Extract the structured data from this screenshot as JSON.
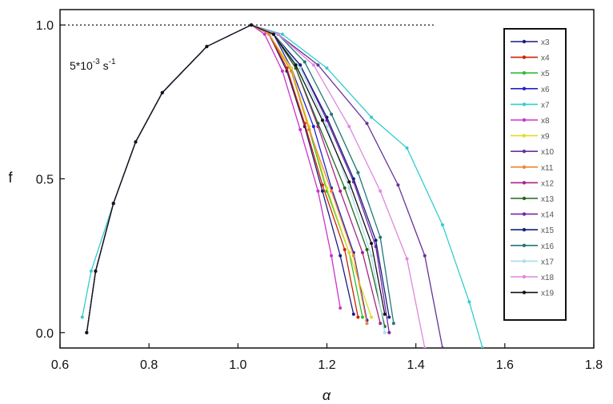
{
  "chart_data": {
    "type": "line",
    "title": "",
    "xlabel": "α",
    "ylabel": "f",
    "xlim": [
      0.6,
      1.8
    ],
    "ylim": [
      -0.05,
      1.05
    ],
    "xticks": [
      "0.6",
      "0.8",
      "1.0",
      "1.2",
      "1.4",
      "1.6",
      "1.8"
    ],
    "yticks": [
      "0.0",
      "0.5",
      "1.0"
    ],
    "reference_line": {
      "y": 1.0,
      "x_range": [
        0.6,
        1.44
      ],
      "style": "dotted"
    },
    "annotation": {
      "base": "5*10",
      "exp1": "-3",
      "unit": " s",
      "exp2": "-1"
    },
    "grid": false,
    "legend_position": "right",
    "series": [
      {
        "name": "x3",
        "color": "#1a1a80",
        "points": [
          [
            0.66,
            0.0
          ],
          [
            0.68,
            0.2
          ],
          [
            0.72,
            0.42
          ],
          [
            0.77,
            0.62
          ],
          [
            0.83,
            0.78
          ],
          [
            0.93,
            0.93
          ],
          [
            1.03,
            1.0
          ],
          [
            1.07,
            0.97
          ],
          [
            1.11,
            0.85
          ],
          [
            1.15,
            0.67
          ],
          [
            1.19,
            0.46
          ],
          [
            1.23,
            0.25
          ],
          [
            1.26,
            0.06
          ]
        ]
      },
      {
        "name": "x4",
        "color": "#cc2200",
        "points": [
          [
            0.66,
            0.0
          ],
          [
            0.68,
            0.2
          ],
          [
            0.72,
            0.42
          ],
          [
            0.77,
            0.62
          ],
          [
            0.83,
            0.78
          ],
          [
            0.93,
            0.93
          ],
          [
            1.03,
            1.0
          ],
          [
            1.07,
            0.97
          ],
          [
            1.11,
            0.86
          ],
          [
            1.15,
            0.68
          ],
          [
            1.19,
            0.48
          ],
          [
            1.24,
            0.27
          ],
          [
            1.27,
            0.05
          ]
        ]
      },
      {
        "name": "x5",
        "color": "#33bb33",
        "points": [
          [
            0.66,
            0.0
          ],
          [
            0.68,
            0.2
          ],
          [
            0.72,
            0.42
          ],
          [
            0.77,
            0.62
          ],
          [
            0.83,
            0.78
          ],
          [
            0.93,
            0.93
          ],
          [
            1.03,
            1.0
          ],
          [
            1.07,
            0.97
          ],
          [
            1.12,
            0.85
          ],
          [
            1.16,
            0.66
          ],
          [
            1.2,
            0.46
          ],
          [
            1.25,
            0.26
          ],
          [
            1.28,
            0.05
          ]
        ]
      },
      {
        "name": "x6",
        "color": "#2222cc",
        "points": [
          [
            0.66,
            0.0
          ],
          [
            0.68,
            0.2
          ],
          [
            0.72,
            0.42
          ],
          [
            0.77,
            0.62
          ],
          [
            0.83,
            0.78
          ],
          [
            0.93,
            0.93
          ],
          [
            1.03,
            1.0
          ],
          [
            1.08,
            0.97
          ],
          [
            1.12,
            0.86
          ],
          [
            1.17,
            0.67
          ],
          [
            1.21,
            0.47
          ],
          [
            1.26,
            0.26
          ],
          [
            1.29,
            0.04
          ]
        ]
      },
      {
        "name": "x7",
        "color": "#33cccc",
        "points": [
          [
            0.65,
            0.05
          ],
          [
            0.67,
            0.2
          ],
          [
            0.72,
            0.42
          ],
          [
            0.77,
            0.62
          ],
          [
            0.83,
            0.78
          ],
          [
            0.93,
            0.93
          ],
          [
            1.03,
            1.0
          ],
          [
            1.1,
            0.97
          ],
          [
            1.2,
            0.86
          ],
          [
            1.3,
            0.7
          ],
          [
            1.38,
            0.6
          ],
          [
            1.46,
            0.35
          ],
          [
            1.52,
            0.1
          ],
          [
            1.55,
            -0.05
          ]
        ]
      },
      {
        "name": "x8",
        "color": "#cc33cc",
        "points": [
          [
            0.66,
            0.0
          ],
          [
            0.68,
            0.2
          ],
          [
            0.72,
            0.42
          ],
          [
            0.77,
            0.62
          ],
          [
            0.83,
            0.78
          ],
          [
            0.93,
            0.93
          ],
          [
            1.03,
            1.0
          ],
          [
            1.06,
            0.97
          ],
          [
            1.1,
            0.85
          ],
          [
            1.14,
            0.66
          ],
          [
            1.18,
            0.46
          ],
          [
            1.21,
            0.25
          ],
          [
            1.23,
            0.08
          ]
        ]
      },
      {
        "name": "x9",
        "color": "#dddd22",
        "points": [
          [
            0.66,
            0.0
          ],
          [
            0.68,
            0.2
          ],
          [
            0.72,
            0.42
          ],
          [
            0.77,
            0.62
          ],
          [
            0.83,
            0.78
          ],
          [
            0.93,
            0.93
          ],
          [
            1.03,
            1.0
          ],
          [
            1.07,
            0.97
          ],
          [
            1.12,
            0.86
          ],
          [
            1.16,
            0.67
          ],
          [
            1.2,
            0.47
          ],
          [
            1.25,
            0.26
          ],
          [
            1.3,
            0.05
          ]
        ]
      },
      {
        "name": "x10",
        "color": "#663399",
        "points": [
          [
            0.66,
            0.0
          ],
          [
            0.68,
            0.2
          ],
          [
            0.72,
            0.42
          ],
          [
            0.77,
            0.62
          ],
          [
            0.83,
            0.78
          ],
          [
            0.93,
            0.93
          ],
          [
            1.03,
            1.0
          ],
          [
            1.09,
            0.97
          ],
          [
            1.18,
            0.87
          ],
          [
            1.29,
            0.68
          ],
          [
            1.36,
            0.48
          ],
          [
            1.42,
            0.25
          ],
          [
            1.46,
            -0.05
          ]
        ]
      },
      {
        "name": "x11",
        "color": "#ee8833",
        "points": [
          [
            0.66,
            0.0
          ],
          [
            0.68,
            0.2
          ],
          [
            0.72,
            0.42
          ],
          [
            0.77,
            0.62
          ],
          [
            0.83,
            0.78
          ],
          [
            0.93,
            0.93
          ],
          [
            1.03,
            1.0
          ],
          [
            1.07,
            0.97
          ],
          [
            1.12,
            0.85
          ],
          [
            1.16,
            0.66
          ],
          [
            1.21,
            0.46
          ],
          [
            1.26,
            0.25
          ],
          [
            1.29,
            0.03
          ]
        ]
      },
      {
        "name": "x12",
        "color": "#aa2288",
        "points": [
          [
            0.66,
            0.0
          ],
          [
            0.68,
            0.2
          ],
          [
            0.72,
            0.42
          ],
          [
            0.77,
            0.62
          ],
          [
            0.83,
            0.78
          ],
          [
            0.93,
            0.93
          ],
          [
            1.03,
            1.0
          ],
          [
            1.08,
            0.97
          ],
          [
            1.13,
            0.86
          ],
          [
            1.18,
            0.67
          ],
          [
            1.23,
            0.46
          ],
          [
            1.28,
            0.26
          ],
          [
            1.32,
            0.03
          ]
        ]
      },
      {
        "name": "x13",
        "color": "#226622",
        "points": [
          [
            0.66,
            0.0
          ],
          [
            0.68,
            0.2
          ],
          [
            0.72,
            0.42
          ],
          [
            0.77,
            0.62
          ],
          [
            0.83,
            0.78
          ],
          [
            0.93,
            0.93
          ],
          [
            1.03,
            1.0
          ],
          [
            1.08,
            0.97
          ],
          [
            1.13,
            0.86
          ],
          [
            1.18,
            0.68
          ],
          [
            1.24,
            0.47
          ],
          [
            1.29,
            0.27
          ],
          [
            1.33,
            0.02
          ]
        ]
      },
      {
        "name": "x14",
        "color": "#7722aa",
        "points": [
          [
            0.66,
            0.0
          ],
          [
            0.68,
            0.2
          ],
          [
            0.72,
            0.42
          ],
          [
            0.77,
            0.62
          ],
          [
            0.83,
            0.78
          ],
          [
            0.93,
            0.93
          ],
          [
            1.03,
            1.0
          ],
          [
            1.08,
            0.97
          ],
          [
            1.14,
            0.87
          ],
          [
            1.2,
            0.69
          ],
          [
            1.26,
            0.49
          ],
          [
            1.31,
            0.28
          ],
          [
            1.34,
            0.0
          ]
        ]
      },
      {
        "name": "x15",
        "color": "#112277",
        "points": [
          [
            0.66,
            0.0
          ],
          [
            0.68,
            0.2
          ],
          [
            0.72,
            0.42
          ],
          [
            0.77,
            0.62
          ],
          [
            0.83,
            0.78
          ],
          [
            0.93,
            0.93
          ],
          [
            1.03,
            1.0
          ],
          [
            1.08,
            0.97
          ],
          [
            1.14,
            0.87
          ],
          [
            1.2,
            0.7
          ],
          [
            1.26,
            0.5
          ],
          [
            1.31,
            0.3
          ],
          [
            1.34,
            0.05
          ]
        ]
      },
      {
        "name": "x16",
        "color": "#227777",
        "points": [
          [
            0.66,
            0.0
          ],
          [
            0.68,
            0.2
          ],
          [
            0.72,
            0.42
          ],
          [
            0.77,
            0.62
          ],
          [
            0.83,
            0.78
          ],
          [
            0.93,
            0.93
          ],
          [
            1.03,
            1.0
          ],
          [
            1.09,
            0.97
          ],
          [
            1.15,
            0.88
          ],
          [
            1.21,
            0.71
          ],
          [
            1.27,
            0.52
          ],
          [
            1.32,
            0.31
          ],
          [
            1.35,
            0.03
          ]
        ]
      },
      {
        "name": "x17",
        "color": "#aaddee",
        "points": [
          [
            0.66,
            0.0
          ],
          [
            0.68,
            0.2
          ],
          [
            0.72,
            0.42
          ],
          [
            0.77,
            0.62
          ],
          [
            0.83,
            0.78
          ],
          [
            0.93,
            0.93
          ],
          [
            1.03,
            1.0
          ],
          [
            1.08,
            0.97
          ],
          [
            1.14,
            0.86
          ],
          [
            1.2,
            0.67
          ],
          [
            1.25,
            0.47
          ],
          [
            1.3,
            0.25
          ],
          [
            1.33,
            0.0
          ]
        ]
      },
      {
        "name": "x18",
        "color": "#dd88dd",
        "points": [
          [
            0.66,
            0.0
          ],
          [
            0.68,
            0.2
          ],
          [
            0.72,
            0.42
          ],
          [
            0.77,
            0.62
          ],
          [
            0.83,
            0.78
          ],
          [
            0.93,
            0.93
          ],
          [
            1.03,
            1.0
          ],
          [
            1.09,
            0.97
          ],
          [
            1.17,
            0.87
          ],
          [
            1.25,
            0.67
          ],
          [
            1.32,
            0.46
          ],
          [
            1.38,
            0.24
          ],
          [
            1.42,
            -0.05
          ]
        ]
      },
      {
        "name": "x19",
        "color": "#111111",
        "points": [
          [
            0.66,
            0.0
          ],
          [
            0.68,
            0.2
          ],
          [
            0.72,
            0.42
          ],
          [
            0.77,
            0.62
          ],
          [
            0.83,
            0.78
          ],
          [
            0.93,
            0.93
          ],
          [
            1.03,
            1.0
          ],
          [
            1.08,
            0.97
          ],
          [
            1.13,
            0.87
          ],
          [
            1.19,
            0.69
          ],
          [
            1.25,
            0.49
          ],
          [
            1.3,
            0.29
          ],
          [
            1.33,
            0.06
          ]
        ]
      }
    ]
  }
}
